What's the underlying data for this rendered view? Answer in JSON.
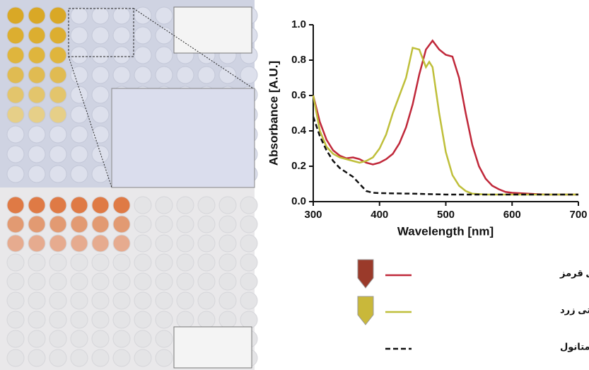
{
  "chart_data": {
    "type": "line",
    "xlabel": "Wavelength [nm]",
    "ylabel": "Absorbance [A.U.]",
    "xlim": [
      300,
      700
    ],
    "xticks": [
      300,
      400,
      500,
      600,
      700
    ],
    "ylim": [
      0,
      1
    ],
    "yticks": [
      {
        "value": 0,
        "label": "0.0"
      },
      0.2,
      0.4,
      0.6,
      0.8,
      {
        "value": 1,
        "label": "1.0"
      }
    ],
    "series": [
      {
        "name": "عصاره ماده رنگزای زیستی قرمز",
        "color": "#c0283a",
        "dash": false,
        "x": [
          300,
          310,
          320,
          330,
          340,
          350,
          360,
          370,
          380,
          390,
          400,
          410,
          420,
          430,
          440,
          450,
          460,
          470,
          480,
          490,
          500,
          510,
          520,
          530,
          540,
          550,
          560,
          570,
          580,
          590,
          600,
          650,
          700
        ],
        "values": [
          0.6,
          0.45,
          0.35,
          0.29,
          0.26,
          0.245,
          0.25,
          0.24,
          0.22,
          0.21,
          0.22,
          0.24,
          0.27,
          0.33,
          0.42,
          0.55,
          0.72,
          0.86,
          0.91,
          0.86,
          0.83,
          0.82,
          0.7,
          0.5,
          0.32,
          0.2,
          0.13,
          0.09,
          0.07,
          0.055,
          0.05,
          0.04,
          0.04
        ]
      },
      {
        "name": "عصاره ماده رنگزای زیستی زرد",
        "color": "#bfbf3a",
        "dash": false,
        "x": [
          300,
          310,
          320,
          330,
          340,
          350,
          360,
          370,
          380,
          390,
          400,
          410,
          420,
          430,
          440,
          450,
          460,
          470,
          475,
          480,
          490,
          500,
          510,
          520,
          530,
          540,
          560,
          600,
          700
        ],
        "values": [
          0.6,
          0.4,
          0.31,
          0.27,
          0.25,
          0.24,
          0.23,
          0.22,
          0.23,
          0.25,
          0.3,
          0.38,
          0.5,
          0.6,
          0.7,
          0.87,
          0.86,
          0.76,
          0.79,
          0.76,
          0.5,
          0.28,
          0.15,
          0.09,
          0.06,
          0.045,
          0.04,
          0.04,
          0.04
        ]
      },
      {
        "name": "متانول",
        "color": "#111111",
        "dash": true,
        "x": [
          300,
          310,
          320,
          330,
          340,
          350,
          360,
          370,
          380,
          390,
          400,
          450,
          500,
          600,
          700
        ],
        "values": [
          0.48,
          0.37,
          0.29,
          0.23,
          0.19,
          0.165,
          0.14,
          0.1,
          0.06,
          0.05,
          0.048,
          0.045,
          0.04,
          0.04,
          0.04
        ]
      }
    ]
  }
}
